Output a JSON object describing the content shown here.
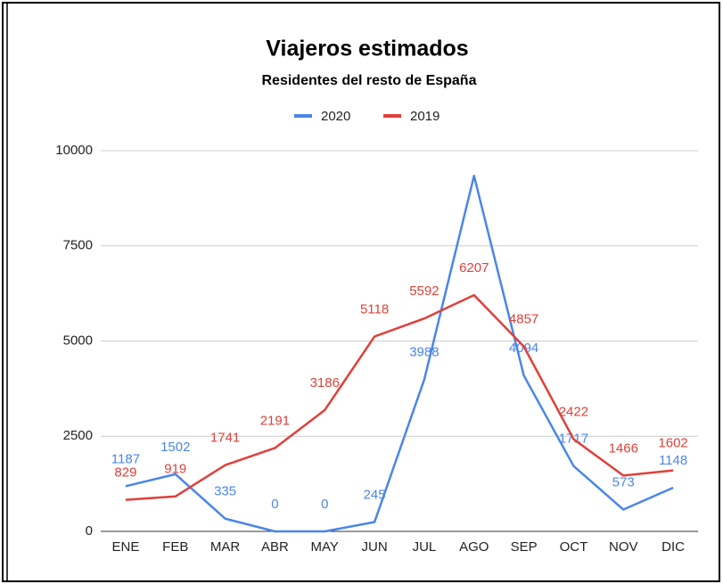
{
  "chart_data": {
    "type": "line",
    "title": "Viajeros estimados",
    "subtitle": "Residentes del resto de España",
    "categories": [
      "ENE",
      "FEB",
      "MAR",
      "ABR",
      "MAY",
      "JUN",
      "JUL",
      "AGO",
      "SEP",
      "OCT",
      "NOV",
      "DIC"
    ],
    "series": [
      {
        "name": "2020",
        "color": "#4a86e8",
        "values": [
          1187,
          1502,
          335,
          0,
          0,
          245,
          3988,
          9340,
          4094,
          1717,
          573,
          1148
        ],
        "value_labels": [
          "1187",
          "1502",
          "335",
          "0",
          "0",
          "245",
          "3988",
          null,
          "4094",
          "1717",
          "573",
          "1148"
        ]
      },
      {
        "name": "2019",
        "color": "#e0403a",
        "values": [
          829,
          919,
          1741,
          2191,
          3186,
          5118,
          5592,
          6207,
          4857,
          2422,
          1466,
          1602
        ]
      }
    ],
    "ylim": [
      0,
      10000
    ],
    "yticks": [
      0,
      2500,
      5000,
      7500,
      10000
    ],
    "grid": true,
    "legend": "top"
  }
}
